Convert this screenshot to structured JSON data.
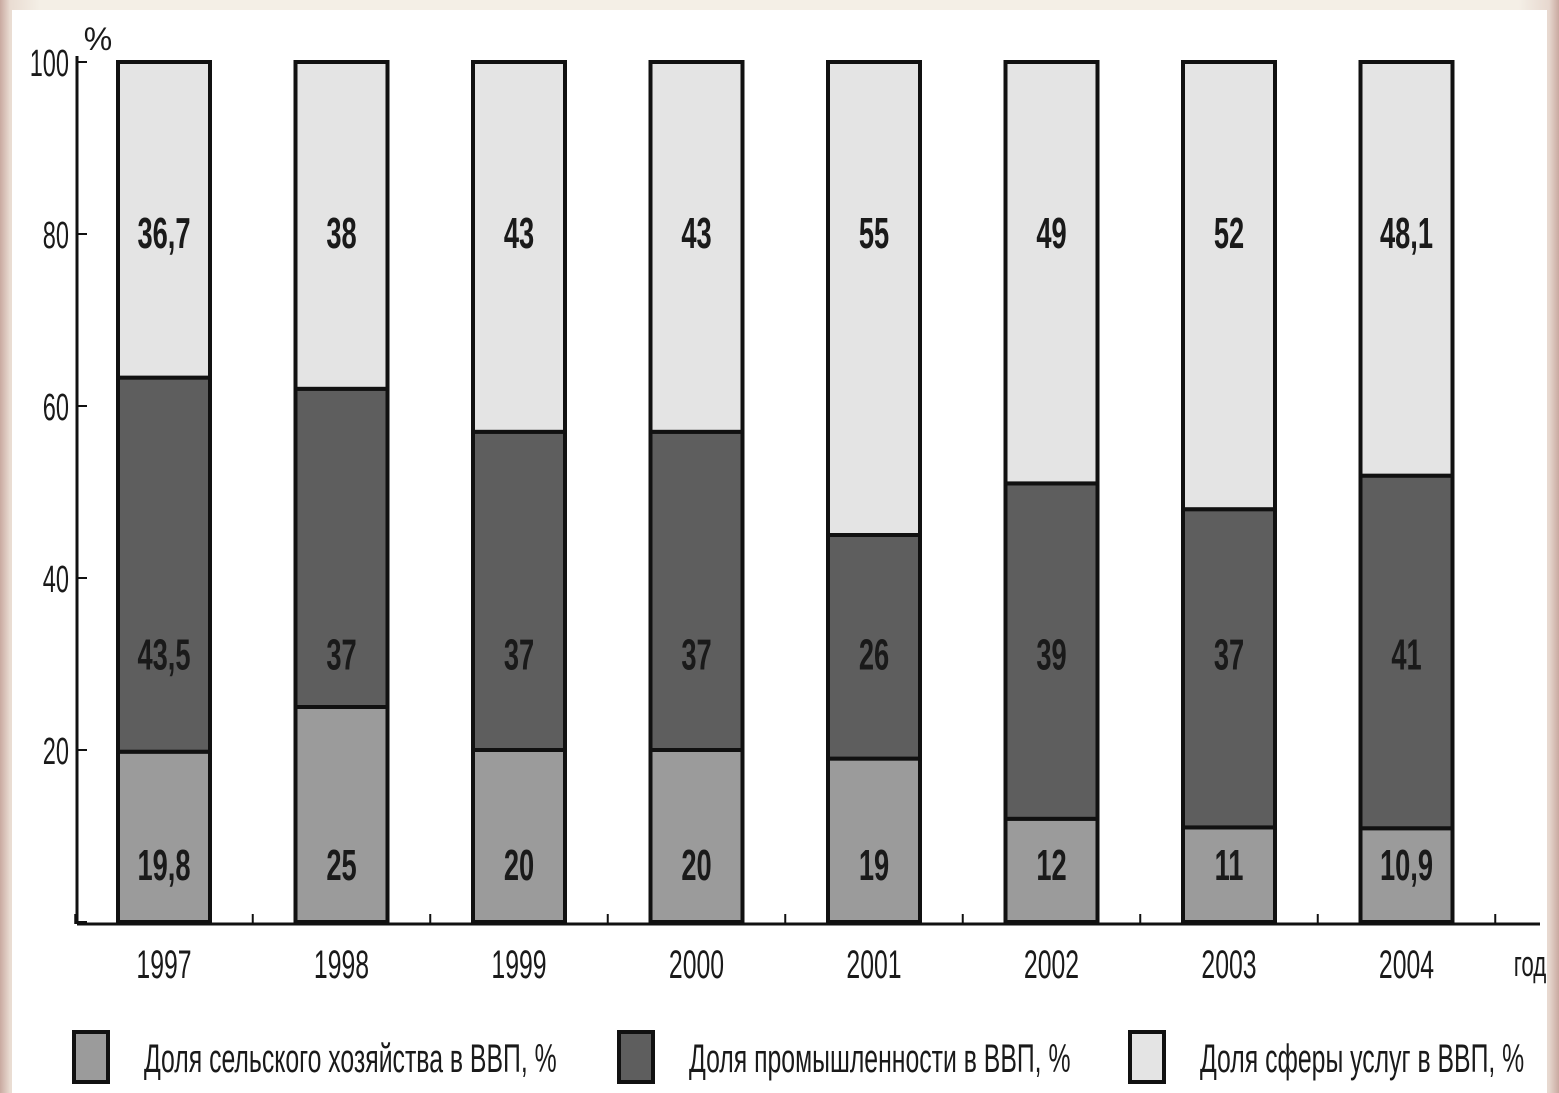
{
  "chart_data": {
    "type": "bar",
    "stacked": true,
    "categories": [
      "1997",
      "1998",
      "1999",
      "2000",
      "2001",
      "2002",
      "2003",
      "2004"
    ],
    "series": [
      {
        "name": "Доля сельского хозяйства в ВВП, %",
        "values": [
          19.8,
          25,
          20,
          20,
          19,
          12,
          11,
          10.9
        ],
        "labels": [
          "19,8",
          "25",
          "20",
          "20",
          "19",
          "12",
          "11",
          "10,9"
        ],
        "color": "#9b9b9b"
      },
      {
        "name": "Доля промышленности в ВВП, %",
        "values": [
          43.5,
          37,
          37,
          37,
          26,
          39,
          37,
          41
        ],
        "labels": [
          "43,5",
          "37",
          "37",
          "37",
          "26",
          "39",
          "37",
          "41"
        ],
        "color": "#5e5e5e"
      },
      {
        "name": "Доля сферы услуг в ВВП, %",
        "values": [
          36.7,
          38,
          43,
          43,
          55,
          49,
          52,
          48.1
        ],
        "labels": [
          "36,7",
          "38",
          "43",
          "43",
          "55",
          "49",
          "52",
          "48,1"
        ],
        "color": "#e4e4e4"
      }
    ],
    "yticks": [
      "0",
      "20",
      "40",
      "60",
      "80",
      "100"
    ],
    "ylim": [
      0,
      100
    ],
    "y_unit": "%",
    "x_unit": "год",
    "legend_position": "bottom",
    "grid": false
  }
}
